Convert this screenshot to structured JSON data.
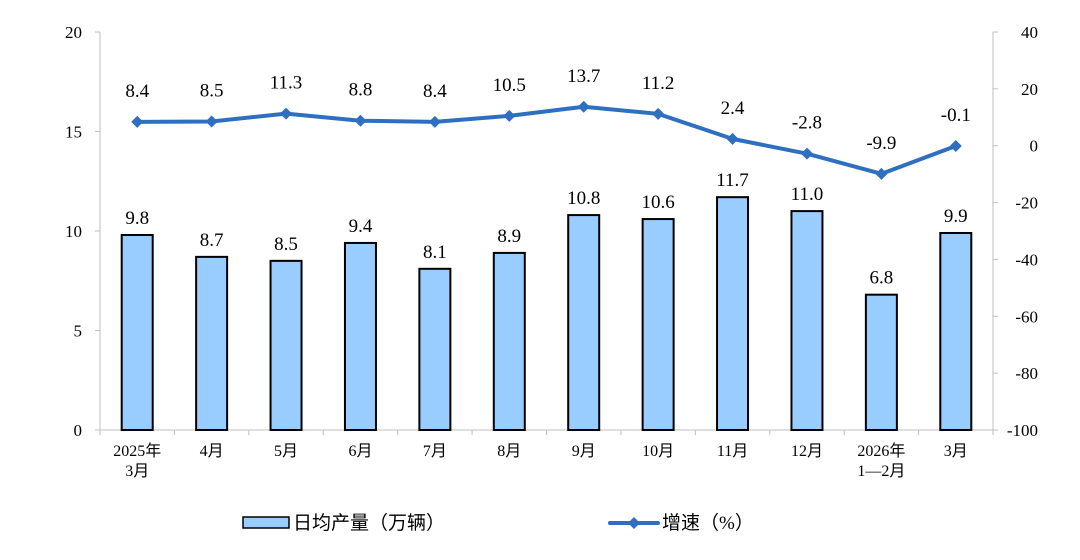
{
  "chart_data": {
    "type": "bar+line",
    "categories": [
      [
        "2025年",
        "3月"
      ],
      [
        "4月"
      ],
      [
        "5月"
      ],
      [
        "6月"
      ],
      [
        "7月"
      ],
      [
        "8月"
      ],
      [
        "9月"
      ],
      [
        "10月"
      ],
      [
        "11月"
      ],
      [
        "12月"
      ],
      [
        "2026年",
        "1—2月"
      ],
      [
        "3月"
      ]
    ],
    "series": [
      {
        "name": "日均产量（万辆）",
        "type": "bar",
        "axis": "left",
        "color": "#99CCFF",
        "values": [
          9.8,
          8.7,
          8.5,
          9.4,
          8.1,
          8.9,
          10.8,
          10.6,
          11.7,
          11.0,
          6.8,
          9.9
        ],
        "labels": [
          "9.8",
          "8.7",
          "8.5",
          "9.4",
          "8.1",
          "8.9",
          "10.8",
          "10.6",
          "11.7",
          "11.0",
          "6.8",
          "9.9"
        ]
      },
      {
        "name": "增速（%）",
        "type": "line",
        "axis": "right",
        "color": "#2E6FC0",
        "values": [
          8.4,
          8.5,
          11.3,
          8.8,
          8.4,
          10.5,
          13.7,
          11.2,
          2.4,
          -2.8,
          -9.9,
          -0.1
        ],
        "labels": [
          "8.4",
          "8.5",
          "11.3",
          "8.8",
          "8.4",
          "10.5",
          "13.7",
          "11.2",
          "2.4",
          "-2.8",
          "-9.9",
          "-0.1"
        ]
      }
    ],
    "y_left": {
      "range": [
        0,
        20
      ],
      "ticks": [
        0,
        5,
        10,
        15,
        20
      ]
    },
    "y_right": {
      "range": [
        -100,
        40
      ],
      "ticks": [
        -100,
        -80,
        -60,
        -40,
        -20,
        0,
        20,
        40
      ]
    },
    "grid": false,
    "legend_placement": "bottom",
    "axis_color": "#BFBFBF"
  }
}
